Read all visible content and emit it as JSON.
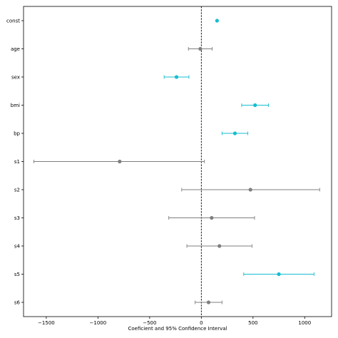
{
  "chart_data": {
    "type": "scatter",
    "title": "",
    "xlabel": "Coeficient and 95% Confidence Interval",
    "ylabel": "",
    "xlim": [
      -1720,
      1260
    ],
    "x_ticks": [
      -1500,
      -1000,
      -500,
      0,
      500,
      1000
    ],
    "x_tick_labels": [
      "−1500",
      "−1000",
      "−500",
      "0",
      "500",
      "1000"
    ],
    "reference_line_x": 0,
    "grid": false,
    "categories": [
      "const",
      "age",
      "sex",
      "bmi",
      "bp",
      "s1",
      "s2",
      "s3",
      "s4",
      "s5",
      "s6"
    ],
    "points": [
      {
        "label": "const",
        "coef": 152,
        "ci_low": 152,
        "ci_high": 152,
        "significant": true
      },
      {
        "label": "age",
        "coef": -10,
        "ci_low": -125,
        "ci_high": 105,
        "significant": false
      },
      {
        "label": "sex",
        "coef": -240,
        "ci_low": -360,
        "ci_high": -120,
        "significant": true
      },
      {
        "label": "bmi",
        "coef": 520,
        "ci_low": 390,
        "ci_high": 650,
        "significant": true
      },
      {
        "label": "bp",
        "coef": 325,
        "ci_low": 200,
        "ci_high": 450,
        "significant": true
      },
      {
        "label": "s1",
        "coef": -790,
        "ci_low": -1620,
        "ci_high": 30,
        "significant": false
      },
      {
        "label": "s2",
        "coef": 475,
        "ci_low": -190,
        "ci_high": 1145,
        "significant": false
      },
      {
        "label": "s3",
        "coef": 100,
        "ci_low": -315,
        "ci_high": 515,
        "significant": false
      },
      {
        "label": "s4",
        "coef": 175,
        "ci_low": -140,
        "ci_high": 490,
        "significant": false
      },
      {
        "label": "s5",
        "coef": 750,
        "ci_low": 410,
        "ci_high": 1090,
        "significant": true
      },
      {
        "label": "s6",
        "coef": 70,
        "ci_low": -60,
        "ci_high": 200,
        "significant": false
      }
    ],
    "colors": {
      "significant": "#17becf",
      "not_significant": "#7f7f7f",
      "reference_line": "#000000",
      "axes": "#000000"
    }
  }
}
